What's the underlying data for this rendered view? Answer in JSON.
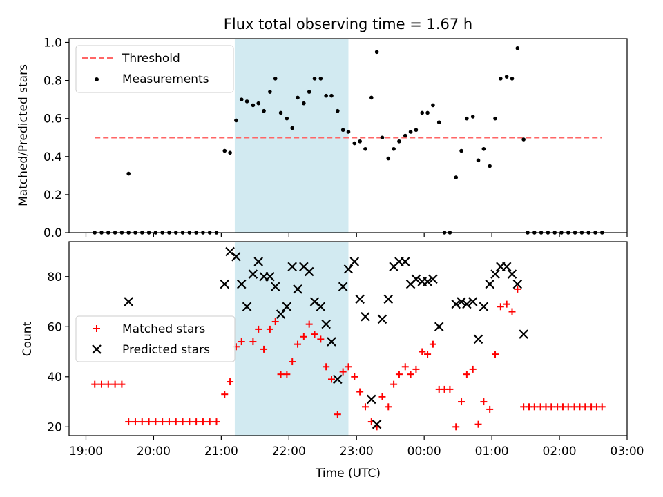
{
  "title": "Flux total observing time = 1.67 h",
  "colors": {
    "threshold": "#ff6666",
    "measurement": "#000000",
    "matched": "#ff0000",
    "predicted": "#000000",
    "shade": "#add8e6"
  },
  "chart_data": [
    {
      "type": "scatter",
      "ylabel": "Matched/Predicted stars",
      "ylim": [
        0,
        1.02
      ],
      "yticks": [
        "0.0",
        "0.2",
        "0.4",
        "0.6",
        "0.8",
        "1.0"
      ],
      "xlim_hours": [
        18.75,
        27.0
      ],
      "shaded_interval_hours": [
        21.2,
        22.88
      ],
      "legend": {
        "position": "upper-left",
        "entries": [
          "Threshold",
          "Measurements"
        ]
      },
      "threshold": {
        "name": "Threshold",
        "value": 0.5,
        "x_range_hours": [
          19.13,
          26.63
        ]
      },
      "series": [
        {
          "name": "Measurements",
          "points": [
            [
              19.13,
              0
            ],
            [
              19.23,
              0
            ],
            [
              19.33,
              0
            ],
            [
              19.43,
              0
            ],
            [
              19.53,
              0
            ],
            [
              19.63,
              0
            ],
            [
              19.63,
              0.31
            ],
            [
              19.73,
              0
            ],
            [
              19.83,
              0
            ],
            [
              19.93,
              0
            ],
            [
              20.03,
              0
            ],
            [
              20.13,
              0
            ],
            [
              20.23,
              0
            ],
            [
              20.33,
              0
            ],
            [
              20.43,
              0
            ],
            [
              20.53,
              0
            ],
            [
              20.63,
              0
            ],
            [
              20.73,
              0
            ],
            [
              20.83,
              0
            ],
            [
              20.93,
              0
            ],
            [
              21.05,
              0.43
            ],
            [
              21.13,
              0.42
            ],
            [
              21.22,
              0.59
            ],
            [
              21.3,
              0.7
            ],
            [
              21.38,
              0.69
            ],
            [
              21.47,
              0.67
            ],
            [
              21.55,
              0.68
            ],
            [
              21.63,
              0.64
            ],
            [
              21.72,
              0.74
            ],
            [
              21.8,
              0.81
            ],
            [
              21.88,
              0.63
            ],
            [
              21.97,
              0.6
            ],
            [
              22.05,
              0.55
            ],
            [
              22.13,
              0.71
            ],
            [
              22.22,
              0.68
            ],
            [
              22.3,
              0.74
            ],
            [
              22.38,
              0.81
            ],
            [
              22.47,
              0.81
            ],
            [
              22.55,
              0.72
            ],
            [
              22.63,
              0.72
            ],
            [
              22.72,
              0.64
            ],
            [
              22.8,
              0.54
            ],
            [
              22.88,
              0.53
            ],
            [
              22.97,
              0.47
            ],
            [
              23.05,
              0.48
            ],
            [
              23.13,
              0.44
            ],
            [
              23.22,
              0.71
            ],
            [
              23.3,
              0.95
            ],
            [
              23.38,
              0.5
            ],
            [
              23.47,
              0.39
            ],
            [
              23.55,
              0.44
            ],
            [
              23.63,
              0.48
            ],
            [
              23.72,
              0.51
            ],
            [
              23.8,
              0.53
            ],
            [
              23.88,
              0.54
            ],
            [
              23.97,
              0.63
            ],
            [
              24.05,
              0.63
            ],
            [
              24.13,
              0.67
            ],
            [
              24.22,
              0.58
            ],
            [
              24.3,
              0
            ],
            [
              24.38,
              0
            ],
            [
              24.47,
              0.29
            ],
            [
              24.55,
              0.43
            ],
            [
              24.63,
              0.6
            ],
            [
              24.72,
              0.61
            ],
            [
              24.8,
              0.38
            ],
            [
              24.88,
              0.44
            ],
            [
              24.97,
              0.35
            ],
            [
              25.05,
              0.6
            ],
            [
              25.13,
              0.81
            ],
            [
              25.22,
              0.82
            ],
            [
              25.3,
              0.81
            ],
            [
              25.38,
              0.97
            ],
            [
              25.47,
              0.49
            ],
            [
              25.53,
              0
            ],
            [
              25.63,
              0
            ],
            [
              25.73,
              0
            ],
            [
              25.83,
              0
            ],
            [
              25.93,
              0
            ],
            [
              26.03,
              0
            ],
            [
              26.13,
              0
            ],
            [
              26.23,
              0
            ],
            [
              26.33,
              0
            ],
            [
              26.43,
              0
            ],
            [
              26.53,
              0
            ],
            [
              26.63,
              0
            ]
          ]
        }
      ]
    },
    {
      "type": "scatter",
      "xlabel": "Time (UTC)",
      "ylabel": "Count",
      "ylim": [
        16.5,
        94
      ],
      "yticks": [
        "20",
        "40",
        "60",
        "80"
      ],
      "xlim_hours": [
        18.75,
        27.0
      ],
      "xticks": [
        "19:00",
        "20:00",
        "21:00",
        "22:00",
        "23:00",
        "00:00",
        "01:00",
        "02:00",
        "03:00"
      ],
      "shaded_interval_hours": [
        21.2,
        22.88
      ],
      "legend": {
        "position": "center-left",
        "entries": [
          "Matched stars",
          "Predicted stars"
        ]
      },
      "series": [
        {
          "name": "Matched stars",
          "points": [
            [
              19.13,
              37
            ],
            [
              19.23,
              37
            ],
            [
              19.33,
              37
            ],
            [
              19.43,
              37
            ],
            [
              19.53,
              37
            ],
            [
              19.63,
              22
            ],
            [
              19.73,
              22
            ],
            [
              19.83,
              22
            ],
            [
              19.93,
              22
            ],
            [
              20.03,
              22
            ],
            [
              20.13,
              22
            ],
            [
              20.23,
              22
            ],
            [
              20.33,
              22
            ],
            [
              20.43,
              22
            ],
            [
              20.53,
              22
            ],
            [
              20.63,
              22
            ],
            [
              20.73,
              22
            ],
            [
              20.83,
              22
            ],
            [
              20.93,
              22
            ],
            [
              21.05,
              33
            ],
            [
              21.13,
              38
            ],
            [
              21.22,
              52
            ],
            [
              21.3,
              54
            ],
            [
              21.47,
              54
            ],
            [
              21.55,
              59
            ],
            [
              21.63,
              51
            ],
            [
              21.72,
              59
            ],
            [
              21.8,
              62
            ],
            [
              21.88,
              41
            ],
            [
              21.97,
              41
            ],
            [
              22.05,
              46
            ],
            [
              22.13,
              53
            ],
            [
              22.22,
              56
            ],
            [
              22.3,
              61
            ],
            [
              22.38,
              57
            ],
            [
              22.47,
              55
            ],
            [
              22.55,
              44
            ],
            [
              22.63,
              39
            ],
            [
              22.72,
              25
            ],
            [
              22.8,
              42
            ],
            [
              22.88,
              44
            ],
            [
              22.97,
              40
            ],
            [
              23.05,
              34
            ],
            [
              23.13,
              28
            ],
            [
              23.22,
              22
            ],
            [
              23.3,
              20
            ],
            [
              23.38,
              32
            ],
            [
              23.47,
              28
            ],
            [
              23.55,
              37
            ],
            [
              23.63,
              41
            ],
            [
              23.72,
              44
            ],
            [
              23.8,
              41
            ],
            [
              23.88,
              43
            ],
            [
              23.97,
              50
            ],
            [
              24.05,
              49
            ],
            [
              24.13,
              53
            ],
            [
              24.22,
              35
            ],
            [
              24.3,
              35
            ],
            [
              24.38,
              35
            ],
            [
              24.47,
              20
            ],
            [
              24.55,
              30
            ],
            [
              24.63,
              41
            ],
            [
              24.72,
              43
            ],
            [
              24.8,
              21
            ],
            [
              24.88,
              30
            ],
            [
              24.97,
              27
            ],
            [
              25.05,
              49
            ],
            [
              25.13,
              68
            ],
            [
              25.22,
              69
            ],
            [
              25.3,
              66
            ],
            [
              25.38,
              75
            ],
            [
              25.47,
              28
            ],
            [
              25.55,
              28
            ],
            [
              25.63,
              28
            ],
            [
              25.72,
              28
            ],
            [
              25.8,
              28
            ],
            [
              25.88,
              28
            ],
            [
              25.97,
              28
            ],
            [
              26.05,
              28
            ],
            [
              26.13,
              28
            ],
            [
              26.22,
              28
            ],
            [
              26.3,
              28
            ],
            [
              26.38,
              28
            ],
            [
              26.47,
              28
            ],
            [
              26.55,
              28
            ],
            [
              26.63,
              28
            ]
          ]
        },
        {
          "name": "Predicted stars",
          "points": [
            [
              19.63,
              70
            ],
            [
              21.05,
              77
            ],
            [
              21.13,
              90
            ],
            [
              21.22,
              88
            ],
            [
              21.3,
              77
            ],
            [
              21.38,
              68
            ],
            [
              21.47,
              81
            ],
            [
              21.55,
              86
            ],
            [
              21.63,
              80
            ],
            [
              21.72,
              80
            ],
            [
              21.8,
              76
            ],
            [
              21.88,
              65
            ],
            [
              21.97,
              68
            ],
            [
              22.05,
              84
            ],
            [
              22.13,
              75
            ],
            [
              22.22,
              84
            ],
            [
              22.3,
              82
            ],
            [
              22.38,
              70
            ],
            [
              22.47,
              68
            ],
            [
              22.55,
              61
            ],
            [
              22.63,
              54
            ],
            [
              22.72,
              39
            ],
            [
              22.8,
              76
            ],
            [
              22.88,
              83
            ],
            [
              22.97,
              86
            ],
            [
              23.05,
              71
            ],
            [
              23.13,
              64
            ],
            [
              23.22,
              31
            ],
            [
              23.3,
              21
            ],
            [
              23.38,
              63
            ],
            [
              23.47,
              71
            ],
            [
              23.55,
              84
            ],
            [
              23.63,
              86
            ],
            [
              23.72,
              86
            ],
            [
              23.8,
              77
            ],
            [
              23.88,
              79
            ],
            [
              23.97,
              78
            ],
            [
              24.05,
              78
            ],
            [
              24.13,
              79
            ],
            [
              24.22,
              60
            ],
            [
              24.47,
              69
            ],
            [
              24.55,
              70
            ],
            [
              24.63,
              69
            ],
            [
              24.72,
              70
            ],
            [
              24.8,
              55
            ],
            [
              24.88,
              68
            ],
            [
              24.97,
              77
            ],
            [
              25.05,
              81
            ],
            [
              25.13,
              84
            ],
            [
              25.22,
              84
            ],
            [
              25.3,
              81
            ],
            [
              25.38,
              77
            ],
            [
              25.47,
              57
            ]
          ]
        }
      ]
    }
  ]
}
